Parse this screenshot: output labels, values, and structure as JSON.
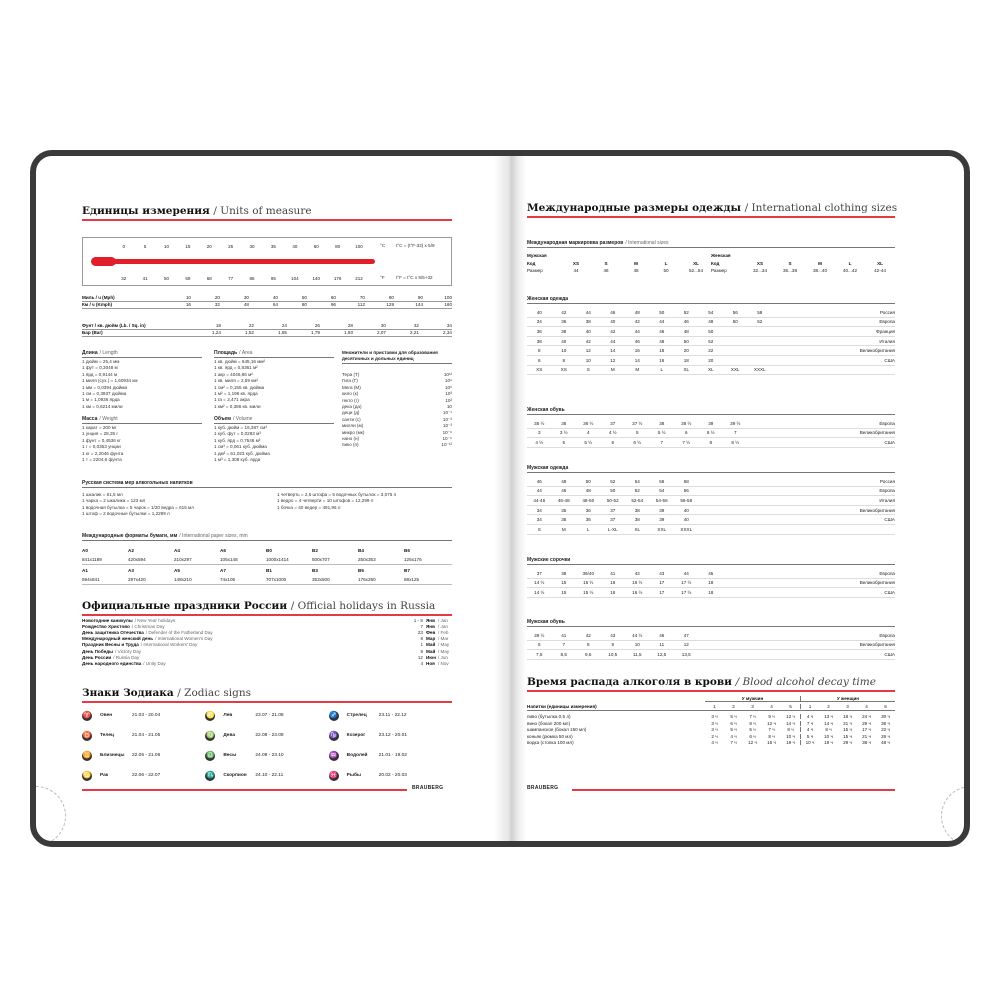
{
  "left": {
    "units": {
      "title": "Единицы измерения",
      "title_en": "/ Units of measure",
      "celsius": [
        "0",
        "5",
        "10",
        "15",
        "20",
        "25",
        "30",
        "35",
        "40",
        "60",
        "80",
        "100"
      ],
      "fahrenheit": [
        "32",
        "41",
        "50",
        "59",
        "68",
        "77",
        "86",
        "95",
        "104",
        "140",
        "176",
        "212"
      ],
      "c_unit": "°C",
      "f_unit": "°F",
      "c_formula": "t°C = (t°F-32) x 5/9",
      "f_formula": "t°F = t°C x 9/5+32",
      "speed": [
        {
          "label": "Миль / ч (Mph)",
          "values": [
            "10",
            "20",
            "30",
            "40",
            "50",
            "60",
            "70",
            "80",
            "90",
            "100"
          ]
        },
        {
          "label": "Км / ч (Kmph)",
          "values": [
            "16",
            "32",
            "48",
            "64",
            "80",
            "96",
            "112",
            "128",
            "144",
            "160"
          ]
        }
      ],
      "pressure": [
        {
          "label": "Фунт / кв. дюйм (Lb. / Sq. in)",
          "values": [
            "18",
            "22",
            "24",
            "26",
            "28",
            "30",
            "32",
            "34"
          ]
        },
        {
          "label": "Бар (Bar)",
          "values": [
            "1,24",
            "1,52",
            "1,65",
            "1,79",
            "1,93",
            "2,07",
            "2,21",
            "2,34"
          ]
        }
      ],
      "length": {
        "title": "Длина",
        "en": "/ Length",
        "items": [
          "1 дюйм = 25,4 мм",
          "1 фут = 0,3048 м",
          "1 ярд = 0,9144 м",
          "1 миля (сух.) = 1,60934 км",
          "1 мм = 0,0394 дюйма",
          "1 см = 0,3937 дюйма",
          "1 м = 1,0936 ярда",
          "1 км = 0,6214 мили"
        ]
      },
      "mass": {
        "title": "Масса",
        "en": "/ Weight",
        "items": [
          "1 карат = 200 мг",
          "1 унция = 28,35 г",
          "1 фунт = 0,4536 кг",
          "1 г = 0,0353 унции",
          "1 кг = 2,2046 фунта",
          "1 т = 2204,6 фунта"
        ]
      },
      "area": {
        "title": "Площадь",
        "en": "/ Area",
        "items": [
          "1 кв. дюйм = 645,16 мм²",
          "1 кв. ярд = 0,8361 м²",
          "1 акр = 4046,86 м²",
          "1 кв. миля = 2,59 км²",
          "1 см² = 0,155 кв. дюйма",
          "1 м² = 1,196 кв. ярда",
          "1 га = 2,471 акра",
          "1 км² = 0,386 кв. мили"
        ]
      },
      "volume": {
        "title": "Объем",
        "en": "/ Volume",
        "items": [
          "1 куб. дюйм = 16,387 см³",
          "1 куб. фут = 0,0283 м³",
          "1 куб. ярд = 0,7646 м³",
          "1 см³ = 0,061 куб. дюйма",
          "1 дм³ = 61,023 куб. дюйма",
          "1 м³ = 1,308 куб. ярда"
        ]
      },
      "prefixes": {
        "title": "Множители и приставки для образования десятичных и дольных единиц",
        "items": [
          [
            "Тера (Т)",
            "10¹²"
          ],
          [
            "Гига (Г)",
            "10⁹"
          ],
          [
            "Мега (М)",
            "10⁶"
          ],
          [
            "кило (к)",
            "10³"
          ],
          [
            "гекто (г)",
            "10²"
          ],
          [
            "дека (да)",
            "10"
          ],
          [
            "деци (д)",
            "10⁻¹"
          ],
          [
            "санти (с)",
            "10⁻²"
          ],
          [
            "милли (м)",
            "10⁻³"
          ],
          [
            "микро (мк)",
            "10⁻⁶"
          ],
          [
            "нано (н)",
            "10⁻⁹"
          ],
          [
            "пико (п)",
            "10⁻¹²"
          ]
        ]
      },
      "russian": {
        "title": "Русская система мер алкогольных напитков",
        "col1": [
          "1 шкалик = 61,5 мл",
          "1 чарка = 2 шкалика = 123 мл",
          "1 водочная бутылка = 5 чарок = 1/20 ведра = 615 мл",
          "1 штоф = 2 водочные бутылки = 1,2299 л"
        ],
        "col2": [
          "1 четверть = 2,5 штофа = 5 водочных бутылок = 3,075 л",
          "1 ведро = 4 четверти = 10 штофов = 12,299 л",
          "1 бочка = 40 ведер = 491,96 л"
        ]
      },
      "paper": {
        "title": "Международные форматы бумаги, мм",
        "en": "/ International paper sizes, mm",
        "rows": [
          [
            "A0",
            "A2",
            "A4",
            "A6",
            "B0",
            "B2",
            "B4",
            "B6"
          ],
          [
            "841x1189",
            "420x594",
            "210x297",
            "105x148",
            "1000x1414",
            "500x707",
            "250x353",
            "125x176"
          ],
          [
            "A1",
            "A3",
            "A5",
            "A7",
            "B1",
            "B3",
            "B5",
            "B7"
          ],
          [
            "594x841",
            "297x420",
            "148x210",
            "74x105",
            "707x1000",
            "353x500",
            "176x250",
            "88x125"
          ]
        ]
      }
    },
    "holidays": {
      "title": "Официальные праздники России",
      "title_en": "/ Official holidays in Russia",
      "items": [
        [
          "Новогодние каникулы",
          "/ New Year holidays",
          "1 - 5",
          "Янв",
          "/ Jan"
        ],
        [
          "Рождество Христово",
          "/ Christmas Day",
          "7",
          "Янв",
          "/ Jan"
        ],
        [
          "День защитника Отечества",
          "/ Defender of the Fatherland Day",
          "23",
          "Фев",
          "/ Feb"
        ],
        [
          "Международный женский день",
          "/ International Women's Day",
          "8",
          "Мар",
          "/ Mar"
        ],
        [
          "Праздник Весны и Труда",
          "/ International Workers' Day",
          "1",
          "Май",
          "/ May"
        ],
        [
          "День Победы",
          "/ Victory Day",
          "9",
          "Май",
          "/ May"
        ],
        [
          "День России",
          "/ Russia Day",
          "12",
          "Июн",
          "/ Jun"
        ],
        [
          "День народного единства",
          "/ Unity Day",
          "4",
          "Ноя",
          "/ Nov"
        ]
      ]
    },
    "zodiac": {
      "title": "Знаки Зодиака",
      "title_en": "/ Zodiac signs",
      "items": [
        [
          "♈",
          "Овен",
          "21.03 - 20.04"
        ],
        [
          "♌",
          "Лев",
          "23.07 - 21.08"
        ],
        [
          "♐",
          "Стрелец",
          "23.11 - 22.12"
        ],
        [
          "♉",
          "Телец",
          "21.04 - 21.05"
        ],
        [
          "♍",
          "Дева",
          "22.08 - 23.09"
        ],
        [
          "♑",
          "Козерог",
          "23.12 - 20.01"
        ],
        [
          "♊",
          "Близнецы",
          "22.05 - 21.06"
        ],
        [
          "♎",
          "Весы",
          "24.09 - 23.10"
        ],
        [
          "♒",
          "Водолей",
          "21.01 - 19.02"
        ],
        [
          "♋",
          "Рак",
          "22.06 - 22.07"
        ],
        [
          "♏",
          "Скорпион",
          "24.10 - 22.11"
        ],
        [
          "♓",
          "Рыбы",
          "20.02 - 20.03"
        ]
      ]
    },
    "logo": "BRAUBERG"
  },
  "right": {
    "clothing": {
      "title": "Международные размеры одежды",
      "title_en": "/ International clothing sizes",
      "intl": {
        "title": "Международная маркировка размеров",
        "en": "/ International sizes",
        "men": {
          "label": "Мужская",
          "code_label": "Код",
          "size_label": "Размер",
          "codes": [
            "XS",
            "S",
            "M",
            "L",
            "XL"
          ],
          "sizes": [
            "44",
            "46",
            "48",
            "50",
            "52...54"
          ]
        },
        "women": {
          "label": "Женская",
          "code_label": "Код",
          "size_label": "Размер",
          "codes": [
            "XS",
            "S",
            "M",
            "L",
            "XL"
          ],
          "sizes": [
            "32...34",
            "36...38",
            "38...40",
            "40...42",
            "42-44"
          ]
        }
      },
      "tables": [
        {
          "title": "Женская одежда",
          "rows": [
            {
              "values": [
                "40",
                "42",
                "44",
                "46",
                "48",
                "50",
                "52",
                "54",
                "56",
                "58"
              ],
              "label": "Россия"
            },
            {
              "values": [
                "34",
                "36",
                "38",
                "40",
                "42",
                "44",
                "46",
                "48",
                "50",
                "52"
              ],
              "label": "Европа"
            },
            {
              "values": [
                "36",
                "38",
                "40",
                "42",
                "44",
                "46",
                "48",
                "50"
              ],
              "label": "Франция"
            },
            {
              "values": [
                "38",
                "40",
                "42",
                "44",
                "46",
                "48",
                "50",
                "52"
              ],
              "label": "Италия"
            },
            {
              "values": [
                "8",
                "10",
                "12",
                "14",
                "16",
                "18",
                "20",
                "22"
              ],
              "label": "Великобритания"
            },
            {
              "values": [
                "6",
                "8",
                "10",
                "12",
                "14",
                "16",
                "18",
                "20"
              ],
              "label": "США"
            },
            {
              "values": [
                "XS",
                "XS",
                "S",
                "M",
                "M",
                "L",
                "XL",
                "XL",
                "XXL",
                "XXXL"
              ],
              "label": ""
            }
          ]
        },
        {
          "title": "Женская обувь",
          "rows": [
            {
              "values": [
                "35 ½",
                "36",
                "36 ½",
                "37",
                "37 ½",
                "38",
                "38 ½",
                "39",
                "39 ½"
              ],
              "label": "Европа"
            },
            {
              "values": [
                "3",
                "3 ½",
                "4",
                "4 ½",
                "5",
                "5 ½",
                "6",
                "6 ½",
                "7"
              ],
              "label": "Великобритания"
            },
            {
              "values": [
                "4 ½",
                "5",
                "5 ½",
                "6",
                "6 ½",
                "7",
                "7 ½",
                "8",
                "8 ½"
              ],
              "label": "США"
            }
          ]
        },
        {
          "title": "Мужская одежда",
          "rows": [
            {
              "values": [
                "46",
                "48",
                "50",
                "52",
                "54",
                "56",
                "58"
              ],
              "label": "Россия"
            },
            {
              "values": [
                "44",
                "46",
                "48",
                "50",
                "52",
                "54",
                "56"
              ],
              "label": "Европа"
            },
            {
              "values": [
                "44-46",
                "46-48",
                "48-50",
                "50-52",
                "52-54",
                "54-56",
                "56-58"
              ],
              "label": "Италия"
            },
            {
              "values": [
                "34",
                "35",
                "36",
                "37",
                "38",
                "39",
                "40"
              ],
              "label": "Великобритания"
            },
            {
              "values": [
                "34",
                "35",
                "36",
                "37",
                "38",
                "39",
                "40"
              ],
              "label": "США"
            },
            {
              "values": [
                "S",
                "M",
                "L",
                "L-XL",
                "XL",
                "XXL",
                "XXXL"
              ],
              "label": ""
            }
          ]
        },
        {
          "title": "Мужские сорочки",
          "rows": [
            {
              "values": [
                "37",
                "38",
                "39/40",
                "41",
                "42",
                "43",
                "44",
                "45"
              ],
              "label": "Европа"
            },
            {
              "values": [
                "14 ½",
                "15",
                "15 ½",
                "16",
                "16 ½",
                "17",
                "17 ½",
                "18"
              ],
              "label": "Великобритания"
            },
            {
              "values": [
                "14 ½",
                "15",
                "15 ½",
                "16",
                "16 ½",
                "17",
                "17 ½",
                "18"
              ],
              "label": "США"
            }
          ]
        },
        {
          "title": "Мужская обувь",
          "rows": [
            {
              "values": [
                "39 ½",
                "41",
                "42",
                "43",
                "44 ½",
                "46",
                "47"
              ],
              "label": "Европа"
            },
            {
              "values": [
                "6",
                "7",
                "8",
                "9",
                "10",
                "11",
                "12"
              ],
              "label": "Великобритания"
            },
            {
              "values": [
                "7,5",
                "8,5",
                "9,5",
                "10,5",
                "11,5",
                "12,5",
                "13,5"
              ],
              "label": "США"
            }
          ]
        }
      ]
    },
    "alcohol": {
      "title": "Время распада алкоголя в крови",
      "title_en": "/ Blood alcohol decay time",
      "men_label": "У мужчин",
      "women_label": "У женщин",
      "drinks_label": "Напитки (единицы измерения)",
      "cols": [
        "1",
        "2",
        "3",
        "4",
        "5"
      ],
      "rows": [
        {
          "drink": "пиво (бутылка 0,5 л)",
          "men": [
            "3 ч",
            "5 ч",
            "7 ч",
            "9 ч",
            "12 ч"
          ],
          "women": [
            "4 ч",
            "13 ч",
            "18 ч",
            "24 ч",
            "30 ч"
          ]
        },
        {
          "drink": "вино (бокал 200 мл)",
          "men": [
            "3 ч",
            "6 ч",
            "8 ч",
            "12 ч",
            "14 ч"
          ],
          "women": [
            "7 ч",
            "14 ч",
            "21 ч",
            "29 ч",
            "36 ч"
          ]
        },
        {
          "drink": "шампанское (бокал 150 мл)",
          "men": [
            "3 ч",
            "5 ч",
            "5 ч",
            "7 ч",
            "8 ч"
          ],
          "women": [
            "4 ч",
            "8 ч",
            "15 ч",
            "17 ч",
            "22 ч"
          ]
        },
        {
          "drink": "коньяк (рюмка 50 мл)",
          "men": [
            "2 ч",
            "4 ч",
            "6 ч",
            "8 ч",
            "10 ч"
          ],
          "women": [
            "5 ч",
            "10 ч",
            "15 ч",
            "21 ч",
            "26 ч"
          ]
        },
        {
          "drink": "водка (стопка 100 мл)",
          "men": [
            "4 ч",
            "7 ч",
            "12 ч",
            "15 ч",
            "19 ч"
          ],
          "women": [
            "10 ч",
            "19 ч",
            "29 ч",
            "38 ч",
            "48 ч"
          ]
        }
      ]
    },
    "logo": "BRAUBERG"
  },
  "colors": {
    "accent": "#e43a45",
    "thermometer": "#e01f2b",
    "cover": "#3a3a3a"
  }
}
